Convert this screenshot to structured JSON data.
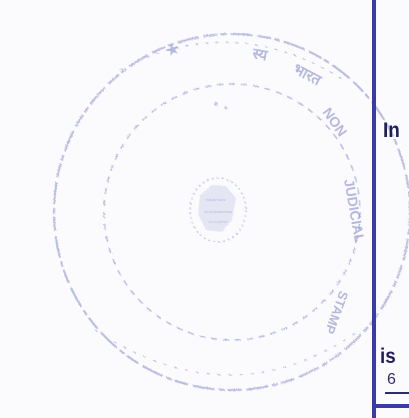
{
  "document": {
    "seal": {
      "type": "official-stamp",
      "color": "#8a8fcf",
      "ring_text": "INDIA NON JUDICIAL"
    },
    "margin_line": {
      "color": "#3a3aa8"
    },
    "text_fragments": {
      "line1": "In",
      "line2": "is",
      "line3": "6"
    }
  }
}
